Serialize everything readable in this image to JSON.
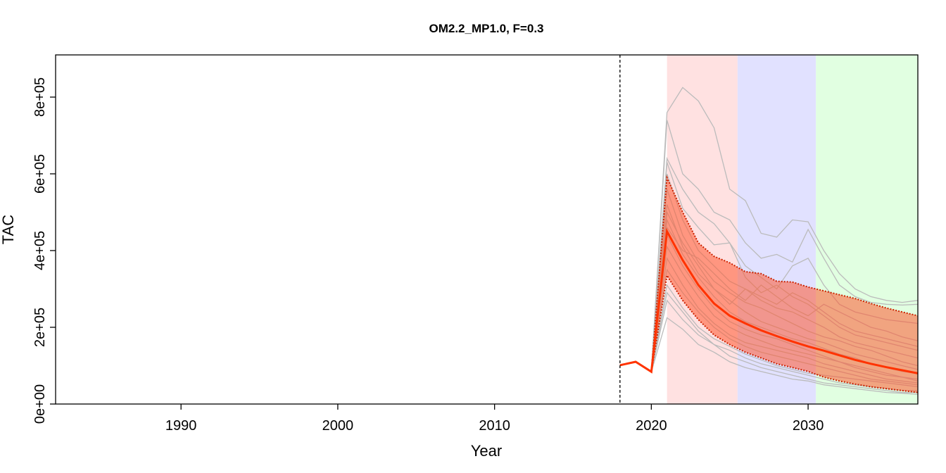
{
  "chart_data": {
    "type": "line",
    "title": "OM2.2_MP1.0, F=0.3",
    "xlabel": "Year",
    "ylabel": "TAC",
    "xlim": [
      1982,
      2037
    ],
    "ylim": [
      0,
      910000
    ],
    "x_ticks": [
      1990,
      2000,
      2010,
      2020,
      2030
    ],
    "y_ticks": [
      0,
      200000,
      400000,
      600000,
      800000
    ],
    "y_tick_labels": [
      "0e+00",
      "2e+05",
      "4e+05",
      "6e+05",
      "8e+05"
    ],
    "reference_line": {
      "x": 2018,
      "style": "dashed",
      "color": "#000000"
    },
    "period_bands": [
      {
        "from": 2021,
        "to": 2025.5,
        "color": "#ffe1e1"
      },
      {
        "from": 2025.5,
        "to": 2030.5,
        "color": "#e1e1ff"
      },
      {
        "from": 2030.5,
        "to": 2037,
        "color": "#e1ffe1"
      }
    ],
    "x": [
      2018,
      2019,
      2020,
      2021,
      2022,
      2023,
      2024,
      2025,
      2026,
      2027,
      2028,
      2029,
      2030,
      2031,
      2032,
      2033,
      2034,
      2035,
      2036,
      2037
    ],
    "series": [
      {
        "role": "median",
        "color": "#ff3300",
        "values": [
          101000,
          110000,
          84000,
          450000,
          375000,
          310000,
          262000,
          230000,
          210000,
          192000,
          177000,
          163000,
          150000,
          139000,
          127000,
          115000,
          105000,
          96000,
          88000,
          80000
        ]
      },
      {
        "role": "upper",
        "color": "#ff3300",
        "values": [
          101000,
          110000,
          84000,
          590000,
          500000,
          420000,
          385000,
          368000,
          345000,
          340000,
          320000,
          318000,
          305000,
          295000,
          285000,
          275000,
          262000,
          250000,
          240000,
          230000
        ]
      },
      {
        "role": "lower",
        "color": "#ff3300",
        "values": [
          101000,
          110000,
          84000,
          335000,
          270000,
          220000,
          180000,
          155000,
          135000,
          120000,
          105000,
          95000,
          85000,
          70000,
          60000,
          52000,
          45000,
          40000,
          35000,
          30000
        ]
      },
      {
        "role": "iteration",
        "color": "#bbbbbb",
        "values": [
          null,
          null,
          84000,
          760000,
          825000,
          790000,
          720000,
          560000,
          530000,
          445000,
          435000,
          480000,
          475000,
          400000,
          340000,
          300000,
          280000,
          270000,
          265000,
          270000
        ]
      },
      {
        "role": "iteration",
        "color": "#bbbbbb",
        "values": [
          null,
          null,
          84000,
          740000,
          600000,
          560000,
          500000,
          480000,
          420000,
          380000,
          390000,
          370000,
          455000,
          380000,
          310000,
          280000,
          265000,
          260000,
          258000,
          260000
        ]
      },
      {
        "role": "iteration",
        "color": "#bbbbbb",
        "values": [
          null,
          null,
          84000,
          640000,
          560000,
          500000,
          470000,
          420000,
          360000,
          330000,
          300000,
          360000,
          380000,
          310000,
          260000,
          240000,
          230000,
          220000,
          215000,
          210000
        ]
      },
      {
        "role": "iteration",
        "color": "#bbbbbb",
        "values": [
          null,
          null,
          84000,
          630000,
          510000,
          460000,
          415000,
          420000,
          330000,
          290000,
          310000,
          280000,
          260000,
          230000,
          200000,
          180000,
          170000,
          160000,
          150000,
          140000
        ]
      },
      {
        "role": "iteration",
        "color": "#bbbbbb",
        "values": [
          null,
          null,
          84000,
          600000,
          480000,
          400000,
          360000,
          320000,
          300000,
          270000,
          250000,
          240000,
          220000,
          200000,
          175000,
          160000,
          150000,
          140000,
          130000,
          120000
        ]
      },
      {
        "role": "iteration",
        "color": "#bbbbbb",
        "values": [
          null,
          null,
          84000,
          560000,
          440000,
          370000,
          320000,
          290000,
          265000,
          250000,
          230000,
          210000,
          190000,
          175000,
          165000,
          150000,
          140000,
          125000,
          110000,
          100000
        ]
      },
      {
        "role": "iteration",
        "color": "#bbbbbb",
        "values": [
          null,
          null,
          84000,
          520000,
          410000,
          340000,
          300000,
          270000,
          240000,
          215000,
          200000,
          185000,
          170000,
          160000,
          145000,
          130000,
          120000,
          110000,
          100000,
          90000
        ]
      },
      {
        "role": "iteration",
        "color": "#bbbbbb",
        "values": [
          null,
          null,
          84000,
          480000,
          390000,
          330000,
          280000,
          240000,
          215000,
          200000,
          185000,
          170000,
          160000,
          145000,
          130000,
          120000,
          105000,
          95000,
          85000,
          80000
        ]
      },
      {
        "role": "iteration",
        "color": "#bbbbbb",
        "values": [
          null,
          null,
          84000,
          440000,
          360000,
          300000,
          250000,
          215000,
          195000,
          180000,
          170000,
          155000,
          140000,
          125000,
          110000,
          100000,
          90000,
          80000,
          70000,
          65000
        ]
      },
      {
        "role": "iteration",
        "color": "#bbbbbb",
        "values": [
          null,
          null,
          84000,
          410000,
          340000,
          280000,
          230000,
          200000,
          180000,
          165000,
          150000,
          140000,
          130000,
          120000,
          110000,
          95000,
          85000,
          75000,
          70000,
          60000
        ]
      },
      {
        "role": "iteration",
        "color": "#bbbbbb",
        "values": [
          null,
          null,
          84000,
          380000,
          310000,
          250000,
          210000,
          180000,
          160000,
          150000,
          140000,
          130000,
          120000,
          105000,
          95000,
          85000,
          75000,
          65000,
          60000,
          55000
        ]
      },
      {
        "role": "iteration",
        "color": "#bbbbbb",
        "values": [
          null,
          null,
          84000,
          350000,
          290000,
          240000,
          200000,
          170000,
          150000,
          135000,
          125000,
          115000,
          105000,
          95000,
          85000,
          75000,
          65000,
          60000,
          55000,
          50000
        ]
      },
      {
        "role": "iteration",
        "color": "#bbbbbb",
        "values": [
          null,
          null,
          84000,
          310000,
          250000,
          200000,
          170000,
          150000,
          130000,
          115000,
          100000,
          90000,
          80000,
          75000,
          70000,
          65000,
          60000,
          55000,
          50000,
          45000
        ]
      },
      {
        "role": "iteration",
        "color": "#bbbbbb",
        "values": [
          null,
          null,
          84000,
          290000,
          240000,
          190000,
          155000,
          140000,
          120000,
          105000,
          95000,
          85000,
          75000,
          65000,
          55000,
          50000,
          45000,
          40000,
          35000,
          35000
        ]
      },
      {
        "role": "iteration",
        "color": "#bbbbbb",
        "values": [
          null,
          null,
          84000,
          270000,
          220000,
          180000,
          155000,
          125000,
          110000,
          95000,
          85000,
          75000,
          65000,
          55000,
          50000,
          45000,
          40000,
          35000,
          30000,
          30000
        ]
      },
      {
        "role": "iteration",
        "color": "#bbbbbb",
        "values": [
          null,
          null,
          84000,
          225000,
          195000,
          155000,
          135000,
          110000,
          95000,
          85000,
          75000,
          65000,
          60000,
          50000,
          45000,
          40000,
          35000,
          30000,
          28000,
          25000
        ]
      },
      {
        "role": "iteration",
        "color": "#bbbbbb",
        "values": [
          null,
          null,
          84000,
          500000,
          420000,
          360000,
          300000,
          260000,
          300000,
          280000,
          260000,
          290000,
          270000,
          240000,
          210000,
          190000,
          180000,
          170000,
          160000,
          150000
        ]
      },
      {
        "role": "iteration",
        "color": "#bbbbbb",
        "values": [
          null,
          null,
          84000,
          460000,
          400000,
          380000,
          340000,
          300000,
          270000,
          310000,
          280000,
          250000,
          230000,
          260000,
          240000,
          220000,
          200000,
          190000,
          175000,
          165000
        ]
      }
    ],
    "band_fill": "#ff5a32",
    "grid": false
  }
}
